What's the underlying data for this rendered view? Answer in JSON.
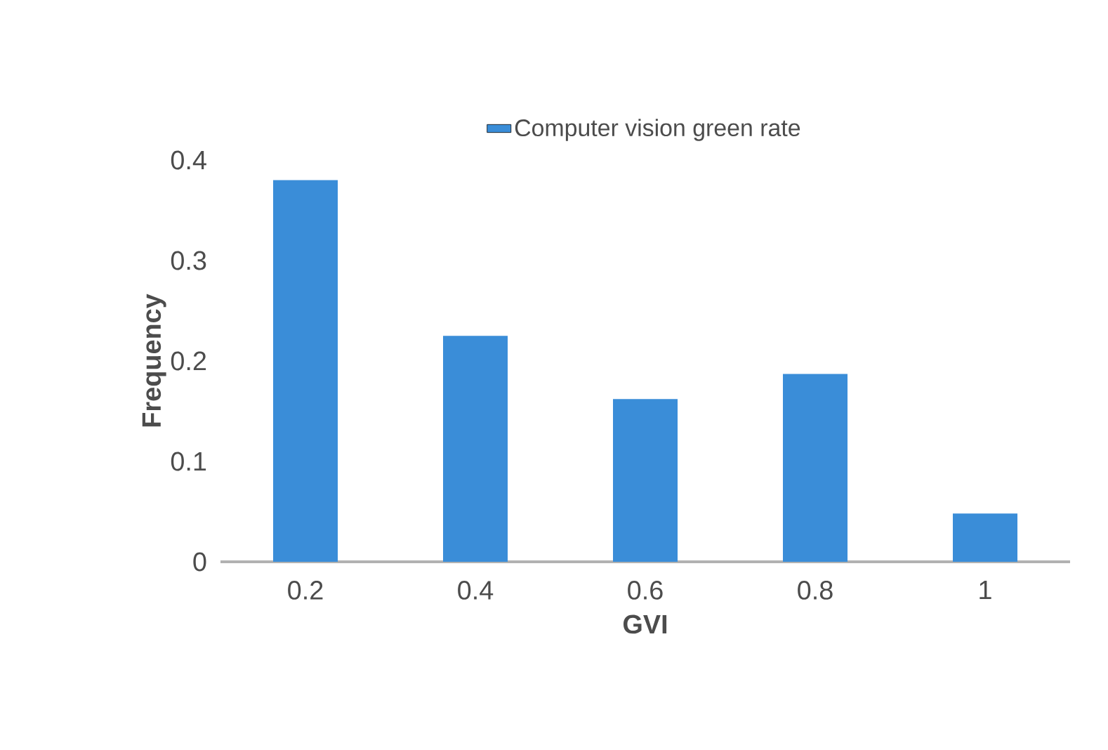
{
  "chart_data": {
    "type": "bar",
    "xlabel": "GVI",
    "ylabel": "Frequency",
    "categories": [
      "0.2",
      "0.4",
      "0.6",
      "0.8",
      "1"
    ],
    "series": [
      {
        "name": "Computer vision green rate",
        "color": "#3a8dd8",
        "values": [
          0.38,
          0.225,
          0.162,
          0.187,
          0.048
        ]
      }
    ],
    "ylim": [
      0,
      0.4
    ],
    "yticks": [
      0,
      0.1,
      0.2,
      0.3,
      0.4
    ],
    "grid": false,
    "legend": "top"
  }
}
